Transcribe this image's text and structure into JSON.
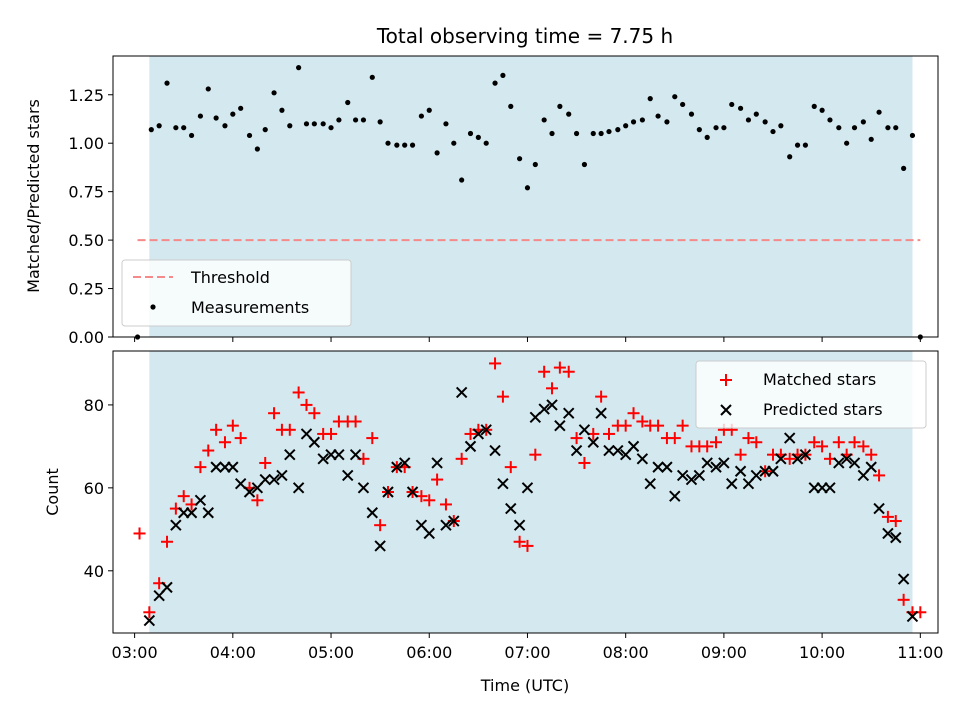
{
  "chart_data": [
    {
      "type": "scatter",
      "title": "Total observing time = 7.75 h",
      "ylabel": "Matched/Predicted stars",
      "ylim": [
        0,
        1.45
      ],
      "yticks": [
        "0.00",
        "0.25",
        "0.50",
        "0.75",
        "1.00",
        "1.25"
      ],
      "ytick_values": [
        0,
        0.25,
        0.5,
        0.75,
        1.0,
        1.25
      ],
      "shaded_region": [
        3.15,
        10.92
      ],
      "shade_color": "#d3e9ef",
      "threshold": {
        "value": 0.5,
        "x_range": [
          3.03,
          11.0
        ],
        "color": "#f48a8a"
      },
      "legend": {
        "position": "lower-left",
        "entries": [
          "Threshold",
          "Measurements"
        ]
      },
      "series": [
        {
          "name": "Measurements",
          "color": "#000000",
          "x": [
            3.03,
            3.17,
            3.25,
            3.33,
            3.42,
            3.5,
            3.58,
            3.67,
            3.75,
            3.83,
            3.92,
            4.0,
            4.08,
            4.17,
            4.25,
            4.33,
            4.42,
            4.5,
            4.58,
            4.67,
            4.75,
            4.83,
            4.92,
            5.0,
            5.08,
            5.17,
            5.25,
            5.33,
            5.42,
            5.5,
            5.58,
            5.67,
            5.75,
            5.83,
            5.92,
            6.0,
            6.08,
            6.17,
            6.25,
            6.33,
            6.42,
            6.5,
            6.58,
            6.67,
            6.75,
            6.83,
            6.92,
            7.0,
            7.08,
            7.17,
            7.25,
            7.33,
            7.42,
            7.5,
            7.58,
            7.67,
            7.75,
            7.83,
            7.92,
            8.0,
            8.08,
            8.17,
            8.25,
            8.33,
            8.42,
            8.5,
            8.58,
            8.67,
            8.75,
            8.83,
            8.92,
            9.0,
            9.08,
            9.17,
            9.25,
            9.33,
            9.42,
            9.5,
            9.58,
            9.67,
            9.75,
            9.83,
            9.92,
            10.0,
            10.08,
            10.17,
            10.25,
            10.33,
            10.42,
            10.5,
            10.58,
            10.67,
            10.75,
            10.83,
            10.92,
            11.0
          ],
          "y": [
            0.0,
            1.07,
            1.09,
            1.31,
            1.08,
            1.08,
            1.04,
            1.14,
            1.28,
            1.13,
            1.09,
            1.15,
            1.18,
            1.04,
            0.97,
            1.07,
            1.26,
            1.17,
            1.09,
            1.39,
            1.1,
            1.1,
            1.1,
            1.08,
            1.12,
            1.21,
            1.12,
            1.12,
            1.34,
            1.11,
            1.0,
            0.99,
            0.99,
            0.99,
            1.14,
            1.17,
            0.95,
            1.1,
            1.0,
            0.81,
            1.05,
            1.03,
            1.0,
            1.31,
            1.35,
            1.19,
            0.92,
            0.77,
            0.89,
            1.12,
            1.05,
            1.19,
            1.15,
            1.05,
            0.89,
            1.05,
            1.05,
            1.06,
            1.07,
            1.09,
            1.11,
            1.12,
            1.23,
            1.14,
            1.11,
            1.24,
            1.2,
            1.15,
            1.07,
            1.03,
            1.08,
            1.08,
            1.2,
            1.18,
            1.12,
            1.15,
            1.11,
            1.06,
            1.09,
            0.93,
            0.99,
            0.99,
            1.19,
            1.17,
            1.12,
            1.08,
            1.0,
            1.08,
            1.11,
            1.02,
            1.16,
            1.08,
            1.08,
            0.87,
            1.04,
            0.0
          ]
        }
      ]
    },
    {
      "type": "scatter",
      "xlabel": "Time (UTC)",
      "ylabel": "Count",
      "ylim": [
        25,
        93
      ],
      "xlim": [
        2.78,
        11.18
      ],
      "yticks": [
        "40",
        "60",
        "80"
      ],
      "ytick_values": [
        40,
        60,
        80
      ],
      "xticks": [
        "03:00",
        "04:00",
        "05:00",
        "06:00",
        "07:00",
        "08:00",
        "09:00",
        "10:00",
        "11:00"
      ],
      "xtick_values": [
        3,
        4,
        5,
        6,
        7,
        8,
        9,
        10,
        11
      ],
      "shaded_region": [
        3.15,
        10.92
      ],
      "shade_color": "#d3e9ef",
      "legend": {
        "position": "upper-right",
        "entries": [
          "Matched stars",
          "Predicted stars"
        ]
      },
      "series": [
        {
          "name": "Matched stars",
          "color": "#ff0000",
          "marker": "+",
          "x": [
            3.05,
            3.15,
            3.25,
            3.33,
            3.42,
            3.5,
            3.58,
            3.67,
            3.75,
            3.83,
            3.92,
            4.0,
            4.08,
            4.17,
            4.25,
            4.33,
            4.42,
            4.5,
            4.58,
            4.67,
            4.75,
            4.83,
            4.92,
            5.0,
            5.08,
            5.17,
            5.25,
            5.33,
            5.42,
            5.5,
            5.58,
            5.67,
            5.75,
            5.83,
            5.92,
            6.0,
            6.08,
            6.17,
            6.25,
            6.33,
            6.42,
            6.5,
            6.58,
            6.67,
            6.75,
            6.83,
            6.92,
            7.0,
            7.08,
            7.17,
            7.25,
            7.33,
            7.42,
            7.5,
            7.58,
            7.67,
            7.75,
            7.83,
            7.92,
            8.0,
            8.08,
            8.17,
            8.25,
            8.33,
            8.42,
            8.5,
            8.58,
            8.67,
            8.75,
            8.83,
            8.92,
            9.0,
            9.08,
            9.17,
            9.25,
            9.33,
            9.42,
            9.5,
            9.58,
            9.67,
            9.75,
            9.83,
            9.92,
            10.0,
            10.08,
            10.17,
            10.25,
            10.33,
            10.42,
            10.5,
            10.58,
            10.67,
            10.75,
            10.83,
            10.92,
            11.0
          ],
          "y": [
            49,
            30,
            37,
            47,
            55,
            58,
            56,
            65,
            69,
            74,
            71,
            75,
            72,
            60,
            57,
            66,
            78,
            74,
            74,
            83,
            80,
            78,
            73,
            73,
            76,
            76,
            76,
            67,
            72,
            51,
            59,
            65,
            65,
            59,
            58,
            57,
            62,
            56,
            52,
            67,
            73,
            74,
            74,
            90,
            82,
            65,
            47,
            46,
            68,
            88,
            84,
            89,
            88,
            72,
            66,
            73,
            82,
            73,
            75,
            75,
            78,
            76,
            75,
            75,
            72,
            72,
            75,
            70,
            70,
            70,
            71,
            74,
            74,
            68,
            72,
            71,
            64,
            68,
            68,
            67,
            68,
            68,
            71,
            70,
            67,
            71,
            68,
            71,
            70,
            68,
            63,
            53,
            52,
            33,
            30,
            30
          ]
        },
        {
          "name": "Predicted stars",
          "color": "#000000",
          "marker": "x",
          "x": [
            3.15,
            3.25,
            3.33,
            3.42,
            3.5,
            3.58,
            3.67,
            3.75,
            3.83,
            3.92,
            4.0,
            4.08,
            4.17,
            4.25,
            4.33,
            4.42,
            4.5,
            4.58,
            4.67,
            4.75,
            4.83,
            4.92,
            5.0,
            5.08,
            5.17,
            5.25,
            5.33,
            5.42,
            5.5,
            5.58,
            5.67,
            5.75,
            5.83,
            5.92,
            6.0,
            6.08,
            6.17,
            6.25,
            6.33,
            6.42,
            6.5,
            6.58,
            6.67,
            6.75,
            6.83,
            6.92,
            7.0,
            7.08,
            7.17,
            7.25,
            7.33,
            7.42,
            7.5,
            7.58,
            7.67,
            7.75,
            7.83,
            7.92,
            8.0,
            8.08,
            8.17,
            8.25,
            8.33,
            8.42,
            8.5,
            8.58,
            8.67,
            8.75,
            8.83,
            8.92,
            9.0,
            9.08,
            9.17,
            9.25,
            9.33,
            9.42,
            9.5,
            9.58,
            9.67,
            9.75,
            9.83,
            9.92,
            10.0,
            10.08,
            10.17,
            10.25,
            10.33,
            10.42,
            10.5,
            10.58,
            10.67,
            10.75,
            10.83,
            10.92
          ],
          "y": [
            28,
            34,
            36,
            51,
            54,
            54,
            57,
            54,
            65,
            65,
            65,
            61,
            59,
            60,
            62,
            62,
            63,
            68,
            60,
            73,
            71,
            67,
            68,
            68,
            63,
            68,
            60,
            54,
            46,
            59,
            65,
            66,
            59,
            51,
            49,
            66,
            51,
            52,
            83,
            70,
            73,
            74,
            69,
            61,
            55,
            51,
            60,
            77,
            79,
            80,
            75,
            78,
            69,
            74,
            71,
            78,
            69,
            69,
            68,
            70,
            67,
            61,
            65,
            65,
            58,
            63,
            62,
            63,
            66,
            65,
            66,
            61,
            64,
            61,
            63,
            64,
            64,
            67,
            72,
            67,
            68,
            60,
            60,
            60,
            66,
            67,
            66,
            63,
            65,
            55,
            49,
            48,
            38,
            29
          ]
        }
      ]
    }
  ]
}
